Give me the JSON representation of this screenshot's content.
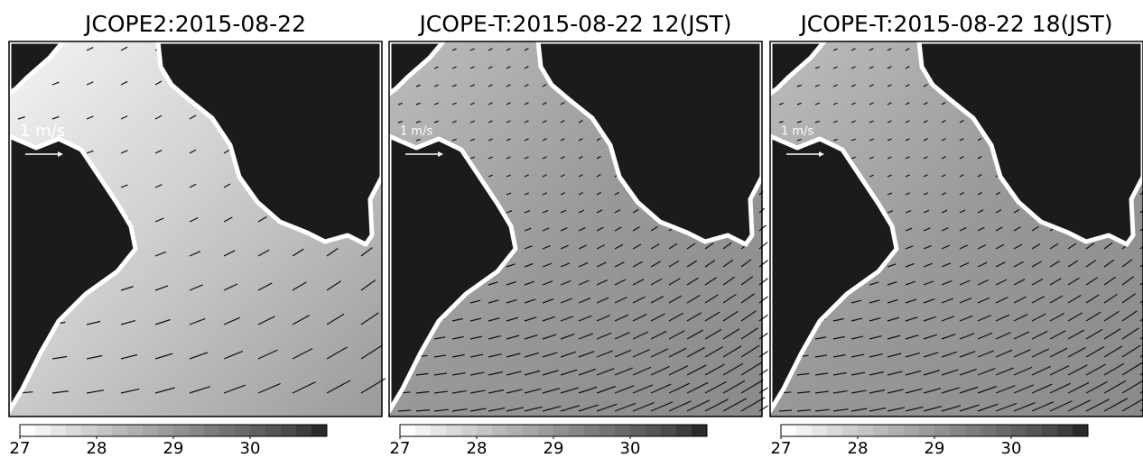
{
  "panels": [
    {
      "title": "JCOPE2:2015-08-22",
      "scale_label": "1 m/s",
      "colorbar": {
        "lim": [
          27,
          31
        ],
        "ticks": [
          27,
          28,
          29,
          30
        ]
      }
    },
    {
      "title": "JCOPE-T:2015-08-22 12(JST)",
      "scale_label": "1 m/s",
      "colorbar": {
        "lim": [
          27,
          31
        ],
        "ticks": [
          27,
          28,
          29,
          30
        ]
      }
    },
    {
      "title": "JCOPE-T:2015-08-22 18(JST)",
      "scale_label": "1 m/s",
      "colorbar": {
        "lim": [
          27,
          31
        ],
        "ticks": [
          27,
          28,
          29,
          30
        ]
      }
    }
  ],
  "colorbar_colors": [
    "#ffffff",
    "#f2f2f2",
    "#e6e6e6",
    "#dadada",
    "#cfcfcf",
    "#c4c4c4",
    "#b9b9b9",
    "#afafaf",
    "#a5a5a5",
    "#9b9b9b",
    "#919191",
    "#878787",
    "#7d7d7d",
    "#737373",
    "#696969",
    "#5f5f5f",
    "#555555",
    "#4a4a4a",
    "#3c3c3c",
    "#2a2a2a"
  ]
}
